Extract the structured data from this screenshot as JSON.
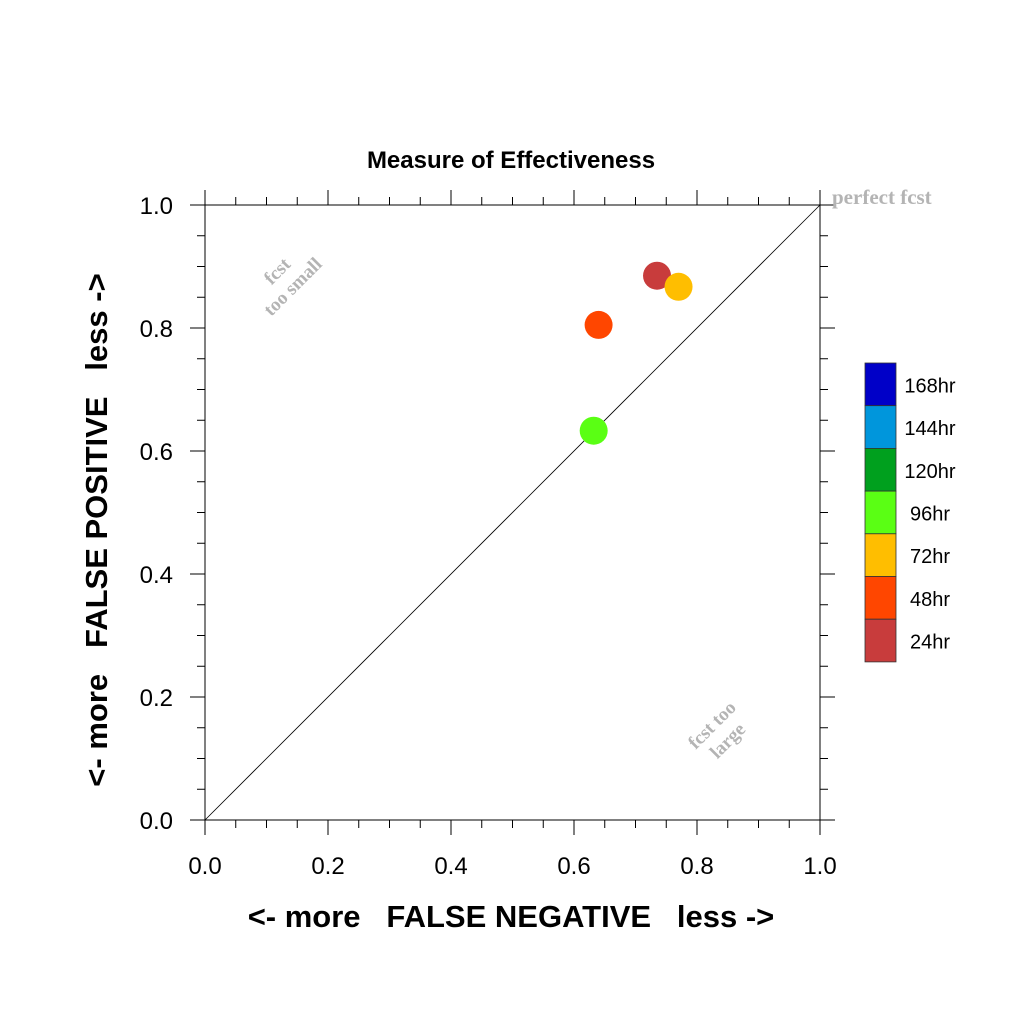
{
  "chart_data": {
    "type": "scatter",
    "title": "Measure of Effectiveness",
    "xlabel": "<- more   FALSE NEGATIVE   less ->",
    "ylabel": "<- more   FALSE POSITIVE   less ->",
    "xlim": [
      0,
      1
    ],
    "ylim": [
      0,
      1
    ],
    "xticks": [
      "0.0",
      "0.2",
      "0.4",
      "0.6",
      "0.8",
      "1.0"
    ],
    "yticks": [
      "0.0",
      "0.2",
      "0.4",
      "0.6",
      "0.8",
      "1.0"
    ],
    "grid": false,
    "diagonal_line": true,
    "annotations": {
      "perfect": "perfect fcst",
      "small_line1": "fcst",
      "small_line2": "too small",
      "large_line1": "fcst too",
      "large_line2": "large"
    },
    "legend_position": "right",
    "legend": [
      {
        "label": "168hr",
        "color": "#0000c8"
      },
      {
        "label": "144hr",
        "color": "#0096dc"
      },
      {
        "label": "120hr",
        "color": "#00a01e"
      },
      {
        "label": "96hr",
        "color": "#5aff14"
      },
      {
        "label": "72hr",
        "color": "#ffbe00"
      },
      {
        "label": "48hr",
        "color": "#ff4600"
      },
      {
        "label": "24hr",
        "color": "#c83c3c"
      }
    ],
    "points": [
      {
        "series": "24hr",
        "x": 0.735,
        "y": 0.885
      },
      {
        "series": "72hr",
        "x": 0.77,
        "y": 0.867
      },
      {
        "series": "48hr",
        "x": 0.64,
        "y": 0.805
      },
      {
        "series": "96hr",
        "x": 0.632,
        "y": 0.633
      }
    ]
  }
}
